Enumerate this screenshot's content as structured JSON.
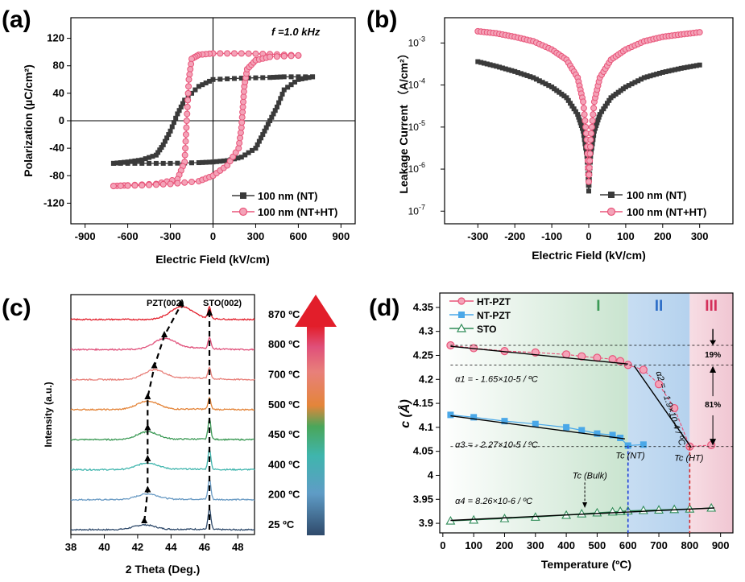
{
  "figure": {
    "panels": [
      "(a)",
      "(b)",
      "(c)",
      "(d)"
    ],
    "colors": {
      "nt": "#3a3a3a",
      "ht": "#e8557a",
      "nt_pzt": "#4aa8e8",
      "sto": "#2e8b57",
      "region1": "#cfe6d4",
      "region2": "#bcd7ef",
      "region3": "#f4d4dc",
      "tc_nt_line": "#1f3fd6",
      "tc_ht_line": "#d62828"
    }
  },
  "chart_data": [
    {
      "panel": "(a)",
      "type": "line",
      "xlabel": "Electric Field (kV/cm)",
      "ylabel": "Polarization (µC/cm²)",
      "xlim": [
        -1000,
        1000
      ],
      "ylim": [
        -150,
        150
      ],
      "xticks": [
        -900,
        -600,
        -300,
        0,
        300,
        600,
        900
      ],
      "yticks": [
        -120,
        -80,
        -40,
        0,
        40,
        80,
        120
      ],
      "annotation": "f =1.0 kHz",
      "legend_position": "bottom-right",
      "series": [
        {
          "name": "100 nm (NT)",
          "marker": "square",
          "upper": {
            "x": [
              700,
              500,
              400,
              200,
              0,
              -100,
              -200,
              -250,
              -300,
              -350,
              -400,
              -500,
              -600,
              -700
            ],
            "y": [
              64,
              64,
              63,
              62,
              60,
              50,
              30,
              10,
              -15,
              -35,
              -50,
              -57,
              -60,
              -62
            ]
          },
          "lower": {
            "x": [
              -700,
              -500,
              -300,
              -100,
              0,
              100,
              200,
              300,
              350,
              400,
              450,
              500,
              600,
              700
            ],
            "y": [
              -62,
              -62,
              -62,
              -61,
              -60,
              -58,
              -53,
              -40,
              -20,
              0,
              20,
              45,
              60,
              64
            ]
          }
        },
        {
          "name": "100 nm (NT+HT)",
          "marker": "circle",
          "upper": {
            "x": [
              600,
              400,
              200,
              0,
              -100,
              -150,
              -170,
              -180,
              -190,
              -200,
              -250,
              -400,
              -600,
              -700
            ],
            "y": [
              95,
              97,
              98,
              98,
              96,
              90,
              60,
              20,
              -20,
              -60,
              -85,
              -92,
              -94,
              -95
            ]
          },
          "lower": {
            "x": [
              -700,
              -500,
              -300,
              -100,
              0,
              100,
              180,
              200,
              210,
              220,
              240,
              300,
              400,
              600
            ],
            "y": [
              -95,
              -94,
              -92,
              -88,
              -80,
              -65,
              -40,
              -10,
              20,
              50,
              75,
              88,
              93,
              95
            ]
          }
        }
      ]
    },
    {
      "panel": "(b)",
      "type": "scatter",
      "xlabel": "Electric Field (kV/cm)",
      "ylabel": "Leakage Current （A/cm²）",
      "yscale": "log",
      "xlim": [
        -390,
        390
      ],
      "ylim": [
        5e-08,
        0.004
      ],
      "xticks": [
        -300,
        -200,
        -100,
        0,
        100,
        200,
        300
      ],
      "yticks": [
        "10-7",
        "10-6",
        "10-5",
        "10-4",
        "10-3"
      ],
      "legend_position": "bottom-right",
      "series": [
        {
          "name": "100 nm (NT)",
          "marker": "square",
          "x": [
            -300,
            -250,
            -200,
            -150,
            -100,
            -60,
            -30,
            -15,
            -5,
            0,
            5,
            15,
            30,
            60,
            100,
            150,
            200,
            250,
            300
          ],
          "y": [
            0.00036,
            0.00028,
            0.00021,
            0.00015,
            9e-05,
            5e-05,
            2e-05,
            8e-06,
            2e-06,
            3e-07,
            2e-06,
            8e-06,
            2e-05,
            5e-05,
            9e-05,
            0.00015,
            0.0002,
            0.00025,
            0.0003
          ]
        },
        {
          "name": "100 nm (NT+HT)",
          "marker": "circle",
          "x": [
            -300,
            -250,
            -200,
            -150,
            -100,
            -60,
            -30,
            -15,
            -5,
            0,
            5,
            15,
            30,
            60,
            100,
            150,
            200,
            250,
            300
          ],
          "y": [
            0.0019,
            0.0017,
            0.0014,
            0.0011,
            0.0007,
            0.0004,
            0.00015,
            4e-05,
            5e-06,
            5e-07,
            5e-06,
            4e-05,
            0.00015,
            0.0004,
            0.0007,
            0.0011,
            0.0014,
            0.0016,
            0.0018
          ]
        }
      ]
    },
    {
      "panel": "(c)",
      "type": "line",
      "xlabel": "2 Theta (Deg.)",
      "ylabel": "Intensity (a.u.)",
      "xlim": [
        38,
        49
      ],
      "xticks": [
        38,
        40,
        42,
        44,
        46,
        48
      ],
      "peak_labels": [
        "PZT(002)",
        "STO(002)"
      ],
      "temperatures": [
        "25 ºC",
        "200 ºC",
        "400 ºC",
        "450 ºC",
        "500 ºC",
        "700 ºC",
        "800 ºC",
        "870 ºC"
      ],
      "pzt_peak_positions": [
        42.4,
        42.6,
        42.6,
        42.6,
        42.6,
        43.0,
        43.6,
        44.6
      ],
      "sto_peak_position": 46.3,
      "trace_colors": [
        "#2f4a6b",
        "#6a9bc4",
        "#3fb5ad",
        "#3c9a56",
        "#e4853a",
        "#e8807a",
        "#e0507a",
        "#e21e2a"
      ]
    },
    {
      "panel": "(d)",
      "type": "scatter",
      "xlabel": "Temperature (ºC)",
      "ylabel": "c (Å)",
      "xlim": [
        -10,
        940
      ],
      "ylim": [
        3.88,
        4.38
      ],
      "xticks": [
        0,
        100,
        200,
        300,
        400,
        500,
        600,
        700,
        800,
        900
      ],
      "yticks": [
        3.9,
        3.95,
        4,
        4.05,
        4.1,
        4.15,
        4.2,
        4.25,
        4.3,
        4.35
      ],
      "regions": [
        "I",
        "II",
        "III"
      ],
      "region_bounds": [
        [
          -10,
          600
        ],
        [
          600,
          800
        ],
        [
          800,
          940
        ]
      ],
      "legend_position": "top-left",
      "series": [
        {
          "name": "HT-PZT",
          "marker": "circle",
          "x": [
            25,
            100,
            200,
            300,
            400,
            450,
            500,
            550,
            575,
            600,
            650,
            700,
            750,
            800,
            870
          ],
          "y": [
            4.271,
            4.265,
            4.259,
            4.256,
            4.252,
            4.248,
            4.245,
            4.242,
            4.238,
            4.23,
            4.22,
            4.19,
            4.14,
            4.06,
            4.063
          ]
        },
        {
          "name": "NT-PZT",
          "marker": "square",
          "x": [
            25,
            100,
            200,
            300,
            400,
            450,
            500,
            550,
            575,
            600,
            650
          ],
          "y": [
            4.126,
            4.121,
            4.113,
            4.107,
            4.1,
            4.094,
            4.087,
            4.084,
            4.078,
            4.062,
            4.064
          ]
        },
        {
          "name": "STO",
          "marker": "triangle",
          "x": [
            25,
            100,
            200,
            300,
            400,
            450,
            500,
            550,
            575,
            600,
            650,
            700,
            750,
            800,
            870
          ],
          "y": [
            3.905,
            3.907,
            3.91,
            3.913,
            3.917,
            3.92,
            3.922,
            3.924,
            3.925,
            3.926,
            3.927,
            3.928,
            3.929,
            3.93,
            3.932
          ]
        }
      ],
      "fit_labels": [
        "α1 = - 1.65×10-5 / ºC",
        "α2 = - 1.9×10-4 / ºC",
        "α3 = - 2.27×10-5 / ºC",
        "α4 = 8.26×10-6 / ºC"
      ],
      "annotations": [
        "Tc (NT)",
        "Tc (HT)",
        "Tc (Bulk)",
        "19%",
        "81%"
      ],
      "tc_values": {
        "nt": 600,
        "ht": 800,
        "bulk": 460
      }
    }
  ]
}
